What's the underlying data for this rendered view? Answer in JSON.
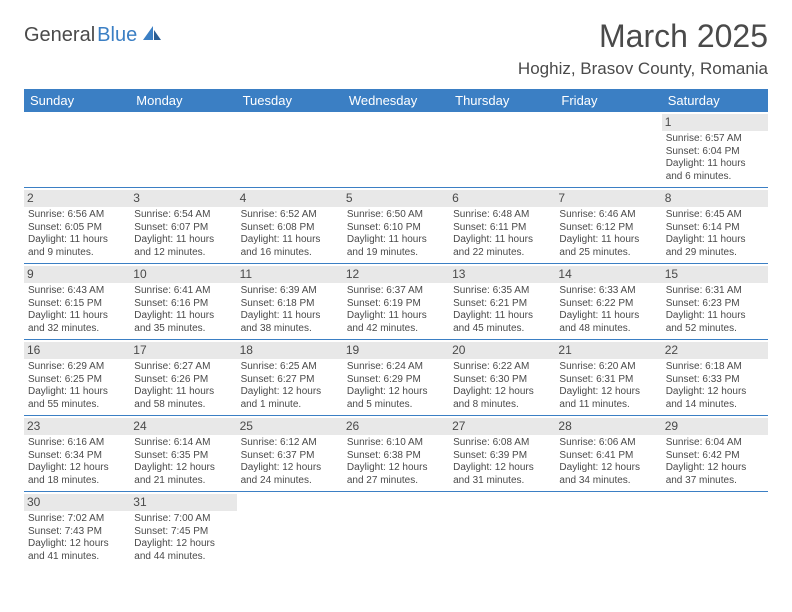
{
  "brand": {
    "name1": "General",
    "name2": "Blue"
  },
  "title": "March 2025",
  "location": "Hoghiz, Brasov County, Romania",
  "colors": {
    "header_bg": "#3b7fc4",
    "header_fg": "#ffffff",
    "text": "#4a4a4a",
    "daynum_bg": "#e8e8e8",
    "rule": "#3b7fc4"
  },
  "weekdays": [
    "Sunday",
    "Monday",
    "Tuesday",
    "Wednesday",
    "Thursday",
    "Friday",
    "Saturday"
  ],
  "weeks": [
    [
      null,
      null,
      null,
      null,
      null,
      null,
      {
        "n": "1",
        "sr": "Sunrise: 6:57 AM",
        "ss": "Sunset: 6:04 PM",
        "dl1": "Daylight: 11 hours",
        "dl2": "and 6 minutes."
      }
    ],
    [
      {
        "n": "2",
        "sr": "Sunrise: 6:56 AM",
        "ss": "Sunset: 6:05 PM",
        "dl1": "Daylight: 11 hours",
        "dl2": "and 9 minutes."
      },
      {
        "n": "3",
        "sr": "Sunrise: 6:54 AM",
        "ss": "Sunset: 6:07 PM",
        "dl1": "Daylight: 11 hours",
        "dl2": "and 12 minutes."
      },
      {
        "n": "4",
        "sr": "Sunrise: 6:52 AM",
        "ss": "Sunset: 6:08 PM",
        "dl1": "Daylight: 11 hours",
        "dl2": "and 16 minutes."
      },
      {
        "n": "5",
        "sr": "Sunrise: 6:50 AM",
        "ss": "Sunset: 6:10 PM",
        "dl1": "Daylight: 11 hours",
        "dl2": "and 19 minutes."
      },
      {
        "n": "6",
        "sr": "Sunrise: 6:48 AM",
        "ss": "Sunset: 6:11 PM",
        "dl1": "Daylight: 11 hours",
        "dl2": "and 22 minutes."
      },
      {
        "n": "7",
        "sr": "Sunrise: 6:46 AM",
        "ss": "Sunset: 6:12 PM",
        "dl1": "Daylight: 11 hours",
        "dl2": "and 25 minutes."
      },
      {
        "n": "8",
        "sr": "Sunrise: 6:45 AM",
        "ss": "Sunset: 6:14 PM",
        "dl1": "Daylight: 11 hours",
        "dl2": "and 29 minutes."
      }
    ],
    [
      {
        "n": "9",
        "sr": "Sunrise: 6:43 AM",
        "ss": "Sunset: 6:15 PM",
        "dl1": "Daylight: 11 hours",
        "dl2": "and 32 minutes."
      },
      {
        "n": "10",
        "sr": "Sunrise: 6:41 AM",
        "ss": "Sunset: 6:16 PM",
        "dl1": "Daylight: 11 hours",
        "dl2": "and 35 minutes."
      },
      {
        "n": "11",
        "sr": "Sunrise: 6:39 AM",
        "ss": "Sunset: 6:18 PM",
        "dl1": "Daylight: 11 hours",
        "dl2": "and 38 minutes."
      },
      {
        "n": "12",
        "sr": "Sunrise: 6:37 AM",
        "ss": "Sunset: 6:19 PM",
        "dl1": "Daylight: 11 hours",
        "dl2": "and 42 minutes."
      },
      {
        "n": "13",
        "sr": "Sunrise: 6:35 AM",
        "ss": "Sunset: 6:21 PM",
        "dl1": "Daylight: 11 hours",
        "dl2": "and 45 minutes."
      },
      {
        "n": "14",
        "sr": "Sunrise: 6:33 AM",
        "ss": "Sunset: 6:22 PM",
        "dl1": "Daylight: 11 hours",
        "dl2": "and 48 minutes."
      },
      {
        "n": "15",
        "sr": "Sunrise: 6:31 AM",
        "ss": "Sunset: 6:23 PM",
        "dl1": "Daylight: 11 hours",
        "dl2": "and 52 minutes."
      }
    ],
    [
      {
        "n": "16",
        "sr": "Sunrise: 6:29 AM",
        "ss": "Sunset: 6:25 PM",
        "dl1": "Daylight: 11 hours",
        "dl2": "and 55 minutes."
      },
      {
        "n": "17",
        "sr": "Sunrise: 6:27 AM",
        "ss": "Sunset: 6:26 PM",
        "dl1": "Daylight: 11 hours",
        "dl2": "and 58 minutes."
      },
      {
        "n": "18",
        "sr": "Sunrise: 6:25 AM",
        "ss": "Sunset: 6:27 PM",
        "dl1": "Daylight: 12 hours",
        "dl2": "and 1 minute."
      },
      {
        "n": "19",
        "sr": "Sunrise: 6:24 AM",
        "ss": "Sunset: 6:29 PM",
        "dl1": "Daylight: 12 hours",
        "dl2": "and 5 minutes."
      },
      {
        "n": "20",
        "sr": "Sunrise: 6:22 AM",
        "ss": "Sunset: 6:30 PM",
        "dl1": "Daylight: 12 hours",
        "dl2": "and 8 minutes."
      },
      {
        "n": "21",
        "sr": "Sunrise: 6:20 AM",
        "ss": "Sunset: 6:31 PM",
        "dl1": "Daylight: 12 hours",
        "dl2": "and 11 minutes."
      },
      {
        "n": "22",
        "sr": "Sunrise: 6:18 AM",
        "ss": "Sunset: 6:33 PM",
        "dl1": "Daylight: 12 hours",
        "dl2": "and 14 minutes."
      }
    ],
    [
      {
        "n": "23",
        "sr": "Sunrise: 6:16 AM",
        "ss": "Sunset: 6:34 PM",
        "dl1": "Daylight: 12 hours",
        "dl2": "and 18 minutes."
      },
      {
        "n": "24",
        "sr": "Sunrise: 6:14 AM",
        "ss": "Sunset: 6:35 PM",
        "dl1": "Daylight: 12 hours",
        "dl2": "and 21 minutes."
      },
      {
        "n": "25",
        "sr": "Sunrise: 6:12 AM",
        "ss": "Sunset: 6:37 PM",
        "dl1": "Daylight: 12 hours",
        "dl2": "and 24 minutes."
      },
      {
        "n": "26",
        "sr": "Sunrise: 6:10 AM",
        "ss": "Sunset: 6:38 PM",
        "dl1": "Daylight: 12 hours",
        "dl2": "and 27 minutes."
      },
      {
        "n": "27",
        "sr": "Sunrise: 6:08 AM",
        "ss": "Sunset: 6:39 PM",
        "dl1": "Daylight: 12 hours",
        "dl2": "and 31 minutes."
      },
      {
        "n": "28",
        "sr": "Sunrise: 6:06 AM",
        "ss": "Sunset: 6:41 PM",
        "dl1": "Daylight: 12 hours",
        "dl2": "and 34 minutes."
      },
      {
        "n": "29",
        "sr": "Sunrise: 6:04 AM",
        "ss": "Sunset: 6:42 PM",
        "dl1": "Daylight: 12 hours",
        "dl2": "and 37 minutes."
      }
    ],
    [
      {
        "n": "30",
        "sr": "Sunrise: 7:02 AM",
        "ss": "Sunset: 7:43 PM",
        "dl1": "Daylight: 12 hours",
        "dl2": "and 41 minutes."
      },
      {
        "n": "31",
        "sr": "Sunrise: 7:00 AM",
        "ss": "Sunset: 7:45 PM",
        "dl1": "Daylight: 12 hours",
        "dl2": "and 44 minutes."
      },
      null,
      null,
      null,
      null,
      null
    ]
  ]
}
